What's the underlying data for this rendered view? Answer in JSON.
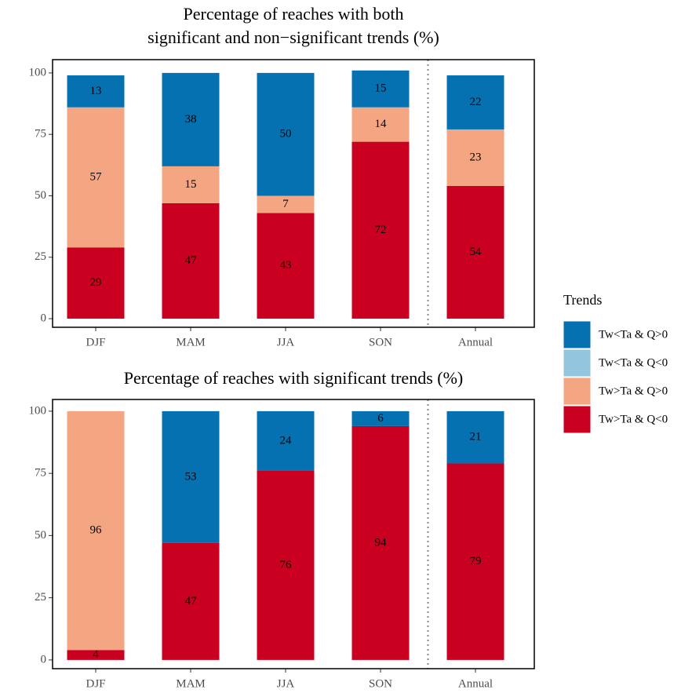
{
  "chart_data": [
    {
      "type": "bar",
      "stacked": true,
      "title": [
        "Percentage of reaches with both",
        "significant and non−significant trends (%)"
      ],
      "categories": [
        "DJF",
        "MAM",
        "JJA",
        "SON",
        "Annual"
      ],
      "series": [
        {
          "name": "Tw<Ta & Q>0",
          "color": "#0571b0",
          "values": [
            13,
            38,
            50,
            15,
            22
          ]
        },
        {
          "name": "Tw<Ta & Q<0",
          "color": "#92c5de",
          "values": [
            0,
            0,
            0,
            0,
            0
          ]
        },
        {
          "name": "Tw>Ta & Q>0",
          "color": "#f4a582",
          "values": [
            57,
            15,
            7,
            14,
            23
          ]
        },
        {
          "name": "Tw>Ta & Q<0",
          "color": "#ca0020",
          "values": [
            29,
            47,
            43,
            72,
            54
          ]
        }
      ],
      "ylim": [
        -3.5,
        105.4
      ],
      "yticks": [
        0,
        25,
        50,
        75,
        100
      ]
    },
    {
      "type": "bar",
      "stacked": true,
      "title": [
        "Percentage of reaches with significant trends (%)"
      ],
      "categories": [
        "DJF",
        "MAM",
        "JJA",
        "SON",
        "Annual"
      ],
      "series": [
        {
          "name": "Tw<Ta & Q>0",
          "color": "#0571b0",
          "values": [
            0,
            53,
            24,
            6,
            21
          ]
        },
        {
          "name": "Tw<Ta & Q<0",
          "color": "#92c5de",
          "values": [
            0,
            0,
            0,
            0,
            0
          ]
        },
        {
          "name": "Tw>Ta & Q>0",
          "color": "#f4a582",
          "values": [
            96,
            0,
            0,
            0,
            0
          ]
        },
        {
          "name": "Tw>Ta & Q<0",
          "color": "#ca0020",
          "values": [
            4,
            47,
            76,
            94,
            79
          ]
        }
      ],
      "ylim": [
        -3.5,
        104.7
      ],
      "yticks": [
        0,
        25,
        50,
        75,
        100
      ]
    }
  ],
  "legend": {
    "title": "Trends"
  }
}
